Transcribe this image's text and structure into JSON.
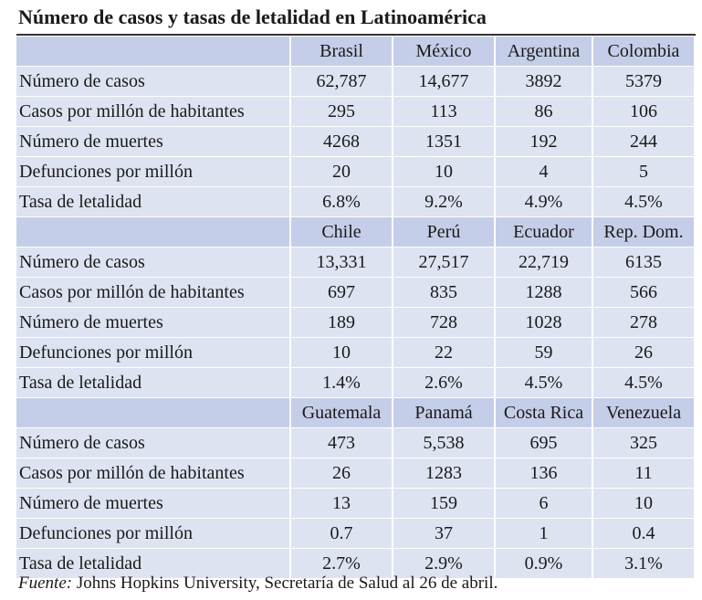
{
  "title": "Número de casos y tasas de letalidad en Latinoamérica",
  "row_labels": [
    "Número de casos",
    "Casos por millón de habitantes",
    "Número de muertes",
    "Defunciones por millón",
    "Tasa de letalidad"
  ],
  "sections": [
    {
      "countries": [
        "Brasil",
        "México",
        "Argentina",
        "Colombia"
      ],
      "rows": [
        [
          "62,787",
          "14,677",
          "3892",
          "5379"
        ],
        [
          "295",
          "113",
          "86",
          "106"
        ],
        [
          "4268",
          "1351",
          "192",
          "244"
        ],
        [
          "20",
          "10",
          "4",
          "5"
        ],
        [
          "6.8%",
          "9.2%",
          "4.9%",
          "4.5%"
        ]
      ]
    },
    {
      "countries": [
        "Chile",
        "Perú",
        "Ecuador",
        "Rep. Dom."
      ],
      "rows": [
        [
          "13,331",
          "27,517",
          "22,719",
          "6135"
        ],
        [
          "697",
          "835",
          "1288",
          "566"
        ],
        [
          "189",
          "728",
          "1028",
          "278"
        ],
        [
          "10",
          "22",
          "59",
          "26"
        ],
        [
          "1.4%",
          "2.6%",
          "4.5%",
          "4.5%"
        ]
      ]
    },
    {
      "countries": [
        "Guatemala",
        "Panamá",
        "Costa Rica",
        "Venezuela"
      ],
      "rows": [
        [
          "473",
          "5,538",
          "695",
          "325"
        ],
        [
          "26",
          "1283",
          "136",
          "11"
        ],
        [
          "13",
          "159",
          "6",
          "10"
        ],
        [
          "0.7",
          "37",
          "1",
          "0.4"
        ],
        [
          "2.7%",
          "2.9%",
          "0.9%",
          "3.1%"
        ]
      ]
    }
  ],
  "source": {
    "prefix": "Fuente:",
    "text": " Johns Hopkins University, Secretaría de Salud al 26 de abril."
  }
}
